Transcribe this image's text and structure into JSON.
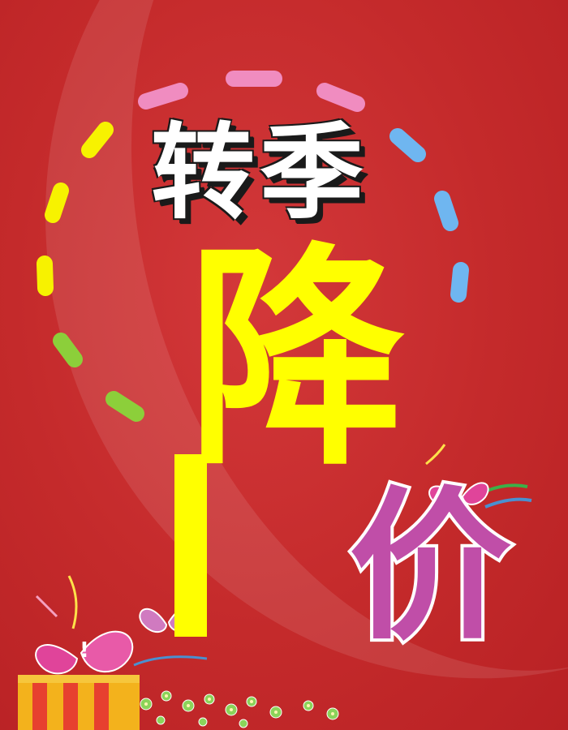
{
  "poster": {
    "headline": "转季",
    "main_char": "降",
    "price_char": "价"
  },
  "colors": {
    "background": "#c62a2a",
    "headline": "#ffffff",
    "main_char": "#ffff00",
    "price_char": "#c04ea8",
    "dash_pink": "#f08cc0",
    "dash_yellow": "#f7f200",
    "dash_blue": "#6fb6f0",
    "dash_green": "#8ccf3a"
  },
  "icons": [
    "heart-icon",
    "gift-box-icon",
    "flower-icon"
  ]
}
